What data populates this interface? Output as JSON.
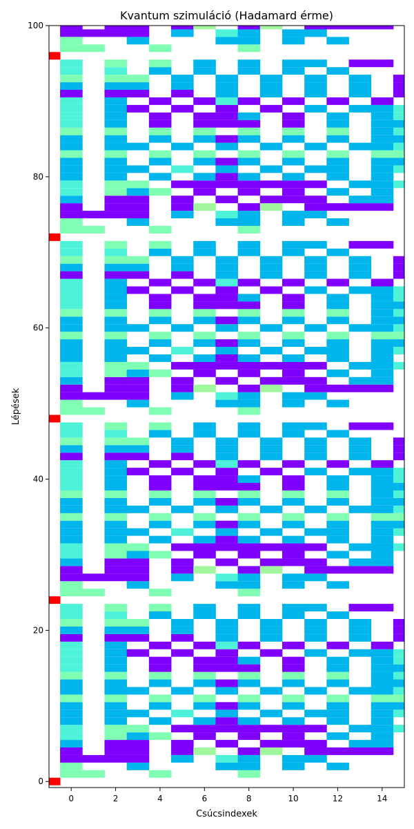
{
  "chart_data": {
    "type": "heatmap",
    "title": "Kvantum szimuláció (Hadamard érme)",
    "xlabel": "Csúcsindexek",
    "ylabel": "Lépések",
    "xlim": [
      -1,
      15
    ],
    "ylim": [
      -0.8,
      100
    ],
    "xticks": [
      "0",
      "2",
      "4",
      "6",
      "8",
      "10",
      "12",
      "14"
    ],
    "yticks": [
      "0",
      "20",
      "40",
      "60",
      "80",
      "100"
    ],
    "grid": false,
    "legend": "none",
    "period": 24,
    "colors": {
      "1": "#ff0000",
      "2": "#ffb360",
      "3": "#e2ce78",
      "4": "#a2f79e",
      "5": "#80ffb4",
      "6": "#4ef2d8",
      "7": "#00b5eb",
      "8": "#8000ff"
    },
    "pattern": [
      "1----------------",
      "-55--5---5-------",
      "-5--7---77-7-7---",
      "-8888-7-67-77----",
      "-8-88-84-84-8888-",
      "-7-88-8-8-888-77-",
      "-6-575-8-8-8-7-7-",
      "-6-55-8888888-776",
      "-7-7-7-787-7-7-7-",
      "-7-77-6-7-7-77-76",
      "-7-7-7-787-7-7-77",
      "-5-5-5-5-5-5-5-55",
      "-7-77-7-7-7-7-776",
      "-7-7-7-787-7-7-77",
      "-5-5-5-5-5-5-5-76",
      "-6-7-8-888-8-7-77",
      "-6-7-8-887-8-7-76",
      "-6-78-8-8-8-7-776",
      "-6-7-8-868-8-8-8-",
      "-8-88-8-7-7-7-7-8",
      "-7-77-7-7-7-7-7-8",
      "-5-55-7-7-7-7-7-8",
      "-6-6-7-7-7-7-7---",
      "-6-5-5-7-7-77-88-"
    ]
  }
}
